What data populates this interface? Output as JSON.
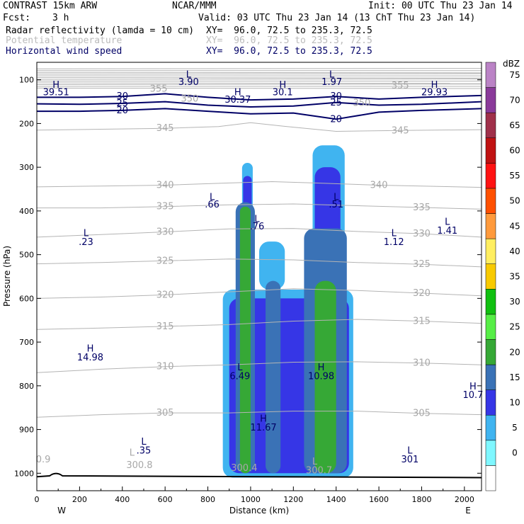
{
  "header": {
    "model": "CONTRAST 15km ARW",
    "org": "NCAR/MMM",
    "init": "Init: 00 UTC Thu 23 Jan 14",
    "fcst_label": "Fcst:",
    "fcst_value": "3 h",
    "valid": "Valid: 03 UTC Thu 23 Jan 14 (13 ChT Thu 23 Jan 14)",
    "fields": [
      {
        "name": "Radar reflectivity (lamda = 10 cm)",
        "xy": "XY=  96.0, 72.5 to 235.3, 72.5"
      },
      {
        "name": "Potential temperature",
        "xy": "XY=  96.0, 72.5 to 235.3, 72.5"
      },
      {
        "name": "Horizontal wind speed",
        "xy": "XY=  96.0, 72.5 to 235.3, 72.5"
      }
    ]
  },
  "colors": {
    "theta": "#b4b4b4",
    "wind": "#000066",
    "ground": "#000000"
  },
  "chart_data": {
    "type": "heatmap",
    "xlabel": "Distance (km)",
    "ylabel": "Pressure (hPa)",
    "xlim": [
      0,
      2080
    ],
    "ylim": [
      1040,
      60
    ],
    "x_ticks": [
      "0",
      "200",
      "400",
      "600",
      "800",
      "1000",
      "1200",
      "1400",
      "1600",
      "1800",
      "2000"
    ],
    "y_ticks": [
      "100",
      "200",
      "300",
      "400",
      "500",
      "600",
      "700",
      "800",
      "900",
      "1000"
    ],
    "x_end_labels": {
      "left": "W",
      "right": "E"
    },
    "colorbar": {
      "unit": "dBZ",
      "levels": [
        "0",
        "5",
        "10",
        "15",
        "20",
        "25",
        "30",
        "35",
        "40",
        "45",
        "50",
        "55",
        "60",
        "65",
        "70",
        "75"
      ],
      "colors": [
        "#ffffff",
        "#7ff7ff",
        "#40b4f0",
        "#3636e6",
        "#3a72b6",
        "#36a836",
        "#56ee46",
        "#10c010",
        "#f8ca00",
        "#ffee60",
        "#ff9a3c",
        "#ff5000",
        "#ff1212",
        "#c01212",
        "#a0304a",
        "#8a3a9a",
        "#bb83c6"
      ]
    },
    "theta_contours": [
      {
        "label": "345",
        "points": [
          [
            0,
            215
          ],
          [
            300,
            213
          ],
          [
            600,
            211
          ],
          [
            850,
            207
          ],
          [
            1000,
            198
          ],
          [
            1150,
            206
          ],
          [
            1400,
            218
          ],
          [
            1700,
            216
          ],
          [
            2080,
            214
          ]
        ]
      },
      {
        "label": "340",
        "points": [
          [
            0,
            345
          ],
          [
            300,
            343
          ],
          [
            600,
            341
          ],
          [
            900,
            336
          ],
          [
            1100,
            333
          ],
          [
            1300,
            336
          ],
          [
            1600,
            341
          ],
          [
            2080,
            346
          ]
        ]
      },
      {
        "label": "335",
        "points": [
          [
            0,
            393
          ],
          [
            300,
            393
          ],
          [
            600,
            390
          ],
          [
            900,
            386
          ],
          [
            1200,
            384
          ],
          [
            1500,
            388
          ],
          [
            1800,
            392
          ],
          [
            2080,
            396
          ]
        ]
      },
      {
        "label": "330",
        "points": [
          [
            0,
            460
          ],
          [
            300,
            454
          ],
          [
            600,
            448
          ],
          [
            900,
            441
          ],
          [
            1200,
            440
          ],
          [
            1500,
            447
          ],
          [
            1800,
            452
          ],
          [
            2080,
            460
          ]
        ]
      },
      {
        "label": "325",
        "points": [
          [
            0,
            521
          ],
          [
            300,
            518
          ],
          [
            600,
            514
          ],
          [
            900,
            510
          ],
          [
            1200,
            512
          ],
          [
            1500,
            518
          ],
          [
            1800,
            522
          ],
          [
            2080,
            528
          ]
        ]
      },
      {
        "label": "320",
        "points": [
          [
            0,
            600
          ],
          [
            300,
            597
          ],
          [
            600,
            592
          ],
          [
            900,
            585
          ],
          [
            1200,
            578
          ],
          [
            1500,
            582
          ],
          [
            1800,
            588
          ],
          [
            2080,
            594
          ]
        ]
      },
      {
        "label": "315",
        "points": [
          [
            0,
            671
          ],
          [
            300,
            668
          ],
          [
            600,
            664
          ],
          [
            900,
            660
          ],
          [
            1200,
            652
          ],
          [
            1500,
            648
          ],
          [
            1800,
            652
          ],
          [
            2080,
            657
          ]
        ]
      },
      {
        "label": "310",
        "points": [
          [
            0,
            770
          ],
          [
            300,
            762
          ],
          [
            600,
            756
          ],
          [
            900,
            752
          ],
          [
            1200,
            746
          ],
          [
            1500,
            745
          ],
          [
            1800,
            748
          ],
          [
            2080,
            752
          ]
        ]
      },
      {
        "label": "305",
        "points": [
          [
            0,
            872
          ],
          [
            300,
            866
          ],
          [
            600,
            862
          ],
          [
            900,
            862
          ],
          [
            1200,
            858
          ],
          [
            1500,
            858
          ],
          [
            1800,
            863
          ],
          [
            2080,
            866
          ]
        ]
      }
    ],
    "wind_contours": [
      {
        "label": "30",
        "points": [
          [
            0,
            140
          ],
          [
            200,
            140
          ],
          [
            400,
            138
          ],
          [
            600,
            132
          ],
          [
            800,
            140
          ],
          [
            1000,
            146
          ],
          [
            1200,
            144
          ],
          [
            1400,
            138
          ],
          [
            1600,
            144
          ],
          [
            1800,
            140
          ],
          [
            2080,
            136
          ]
        ]
      },
      {
        "label": "25",
        "points": [
          [
            0,
            155
          ],
          [
            200,
            156
          ],
          [
            400,
            154
          ],
          [
            600,
            150
          ],
          [
            800,
            158
          ],
          [
            1000,
            162
          ],
          [
            1200,
            160
          ],
          [
            1400,
            152
          ],
          [
            1600,
            158
          ],
          [
            1800,
            156
          ],
          [
            2080,
            150
          ]
        ]
      },
      {
        "label": "20",
        "points": [
          [
            0,
            172
          ],
          [
            200,
            172
          ],
          [
            400,
            170
          ],
          [
            600,
            166
          ],
          [
            800,
            172
          ],
          [
            1000,
            178
          ],
          [
            1200,
            176
          ],
          [
            1400,
            190
          ],
          [
            1600,
            174
          ],
          [
            1800,
            170
          ],
          [
            2080,
            166
          ]
        ]
      }
    ],
    "reflectivity_cells": [
      {
        "dbz": "5",
        "x": [
          870,
          1480
        ],
        "p": [
          580,
          1010
        ]
      },
      {
        "dbz": "5",
        "x": [
          960,
          1010
        ],
        "p": [
          290,
          580
        ]
      },
      {
        "dbz": "5",
        "x": [
          1040,
          1160
        ],
        "p": [
          470,
          580
        ]
      },
      {
        "dbz": "5",
        "x": [
          1290,
          1440
        ],
        "p": [
          250,
          580
        ]
      },
      {
        "dbz": "10",
        "x": [
          900,
          1460
        ],
        "p": [
          600,
          1000
        ]
      },
      {
        "dbz": "10",
        "x": [
          965,
          1005
        ],
        "p": [
          320,
          600
        ]
      },
      {
        "dbz": "10",
        "x": [
          1300,
          1420
        ],
        "p": [
          300,
          600
        ]
      },
      {
        "dbz": "15",
        "x": [
          930,
          1020
        ],
        "p": [
          380,
          1000
        ]
      },
      {
        "dbz": "15",
        "x": [
          1070,
          1140
        ],
        "p": [
          560,
          1000
        ]
      },
      {
        "dbz": "15",
        "x": [
          1250,
          1450
        ],
        "p": [
          440,
          1000
        ]
      },
      {
        "dbz": "20",
        "x": [
          950,
          1000
        ],
        "p": [
          390,
          1000
        ]
      },
      {
        "dbz": "20",
        "x": [
          1300,
          1400
        ],
        "p": [
          560,
          1000
        ]
      }
    ],
    "annotations": [
      {
        "text": "L",
        "x": 710,
        "p": 95
      },
      {
        "text": "3.90",
        "x": 710,
        "p": 112
      },
      {
        "text": "L",
        "x": 1380,
        "p": 95
      },
      {
        "text": "1.97",
        "x": 1380,
        "p": 112
      },
      {
        "text": "H",
        "x": 90,
        "p": 118
      },
      {
        "text": "39.51",
        "x": 90,
        "p": 135
      },
      {
        "text": "H",
        "x": 940,
        "p": 135
      },
      {
        "text": "30.37",
        "x": 940,
        "p": 152
      },
      {
        "text": "H",
        "x": 1150,
        "p": 118
      },
      {
        "text": "30.1",
        "x": 1150,
        "p": 135
      },
      {
        "text": "H",
        "x": 1860,
        "p": 118
      },
      {
        "text": "29.93",
        "x": 1860,
        "p": 135
      },
      {
        "text": "L",
        "x": 820,
        "p": 375
      },
      {
        "text": ".66",
        "x": 820,
        "p": 392
      },
      {
        "text": "L",
        "x": 1030,
        "p": 425
      },
      {
        "text": ".76",
        "x": 1030,
        "p": 442
      },
      {
        "text": "L",
        "x": 1400,
        "p": 375
      },
      {
        "text": ".51",
        "x": 1400,
        "p": 392
      },
      {
        "text": "L",
        "x": 230,
        "p": 458
      },
      {
        "text": ".23",
        "x": 230,
        "p": 478
      },
      {
        "text": "L",
        "x": 1670,
        "p": 458
      },
      {
        "text": "1.12",
        "x": 1670,
        "p": 478
      },
      {
        "text": "L",
        "x": 1920,
        "p": 432
      },
      {
        "text": "1.41",
        "x": 1920,
        "p": 452
      },
      {
        "text": "H",
        "x": 250,
        "p": 722
      },
      {
        "text": "14.98",
        "x": 250,
        "p": 742
      },
      {
        "text": "L",
        "x": 950,
        "p": 765
      },
      {
        "text": "6.49",
        "x": 950,
        "p": 785
      },
      {
        "text": "H",
        "x": 1330,
        "p": 765
      },
      {
        "text": "10.98",
        "x": 1330,
        "p": 785
      },
      {
        "text": "H",
        "x": 2040,
        "p": 808
      },
      {
        "text": "10.7",
        "x": 2040,
        "p": 828
      },
      {
        "text": "H",
        "x": 1060,
        "p": 882
      },
      {
        "text": "11.67",
        "x": 1060,
        "p": 902
      },
      {
        "text": "L",
        "x": 500,
        "p": 935
      },
      {
        "text": ".35",
        "x": 500,
        "p": 955
      },
      {
        "text": "L",
        "x": 1745,
        "p": 955
      },
      {
        "text": "301",
        "x": 1745,
        "p": 975
      }
    ],
    "gray_annotations": [
      {
        "text": "0.9",
        "x": 30,
        "p": 975
      },
      {
        "text": "L",
        "x": 445,
        "p": 960
      },
      {
        "text": "300.8",
        "x": 480,
        "p": 988
      },
      {
        "text": "300.4",
        "x": 970,
        "p": 995
      },
      {
        "text": "L",
        "x": 1300,
        "p": 980
      },
      {
        "text": "300.7",
        "x": 1320,
        "p": 1000
      },
      {
        "text": "355",
        "x": 570,
        "p": 127
      },
      {
        "text": "355",
        "x": 1700,
        "p": 120
      },
      {
        "text": "350",
        "x": 715,
        "p": 150
      },
      {
        "text": "350",
        "x": 1520,
        "p": 160
      }
    ]
  }
}
